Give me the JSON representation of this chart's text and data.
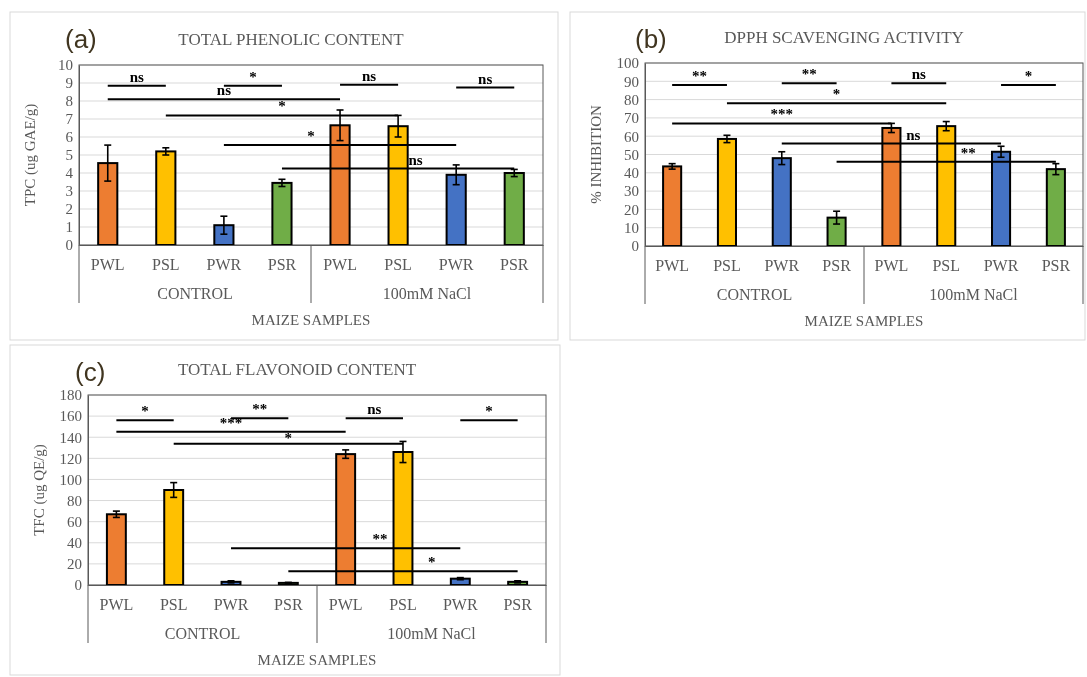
{
  "chart_data": [
    {
      "type": "bar",
      "title": "TOTAL PHENOLIC CONTENT",
      "xlabel": "MAIZE SAMPLES",
      "ylabel": "TPC (ug GAE/g)",
      "categories": [
        "PWL",
        "PSL",
        "PWR",
        "PSR",
        "PWL",
        "PSL",
        "PWR",
        "PSR"
      ],
      "values": [
        4.55,
        5.2,
        1.1,
        3.45,
        6.65,
        6.6,
        3.9,
        4.0
      ],
      "errors": [
        1.0,
        0.2,
        0.5,
        0.2,
        0.85,
        0.6,
        0.55,
        0.2
      ],
      "colors": [
        "#ed7d31",
        "#ffc000",
        "#4472c4",
        "#70ad47",
        "#ed7d31",
        "#ffc000",
        "#4472c4",
        "#70ad47"
      ],
      "ylim": [
        0,
        10
      ],
      "yticks": [
        0,
        1,
        2,
        3,
        4,
        5,
        6,
        7,
        8,
        9,
        10
      ],
      "grid": "y",
      "annotations": [
        "(a)",
        "CONTROL",
        "100mM NaCl",
        "ns",
        "*",
        "ns",
        "ns",
        "ns",
        "*",
        "*",
        "ns"
      ]
    },
    {
      "type": "bar",
      "title": "DPPH SCAVENGING ACTIVITY",
      "xlabel": "MAIZE SAMPLES",
      "ylabel": "% INHIBITION",
      "categories": [
        "PWL",
        "PSL",
        "PWR",
        "PSR",
        "PWL",
        "PSL",
        "PWR",
        "PSR"
      ],
      "values": [
        43.5,
        58.5,
        48,
        15.5,
        64.5,
        65.5,
        51.5,
        42
      ],
      "errors": [
        1.5,
        2,
        3.5,
        3.5,
        2.5,
        2.5,
        3,
        3
      ],
      "colors": [
        "#ed7d31",
        "#ffc000",
        "#4472c4",
        "#70ad47",
        "#ed7d31",
        "#ffc000",
        "#4472c4",
        "#70ad47"
      ],
      "ylim": [
        0,
        100
      ],
      "yticks": [
        0,
        10,
        20,
        30,
        40,
        50,
        60,
        70,
        80,
        90,
        100
      ],
      "grid": "y",
      "annotations": [
        "(b)",
        "CONTROL",
        "100mM NaCl",
        "**",
        "**",
        "ns",
        "*",
        "*",
        "***",
        "ns",
        "**"
      ]
    },
    {
      "type": "bar",
      "title": "TOTAL FLAVONOID CONTENT",
      "xlabel": "MAIZE SAMPLES",
      "ylabel": "TFC (ug QE/g)",
      "categories": [
        "PWL",
        "PSL",
        "PWR",
        "PSR",
        "PWL",
        "PSL",
        "PWR",
        "PSR"
      ],
      "values": [
        67,
        90,
        3,
        2,
        124,
        126,
        6,
        3
      ],
      "errors": [
        3,
        7,
        1,
        0.5,
        4,
        10,
        1,
        1
      ],
      "colors": [
        "#ed7d31",
        "#ffc000",
        "#4472c4",
        "#70ad47",
        "#ed7d31",
        "#ffc000",
        "#4472c4",
        "#70ad47"
      ],
      "ylim": [
        0,
        180
      ],
      "yticks": [
        0,
        20,
        40,
        60,
        80,
        100,
        120,
        140,
        160,
        180
      ],
      "grid": "y",
      "annotations": [
        "(c)",
        "CONTROL",
        "100mM NaCl",
        "*",
        "**",
        "ns",
        "*",
        "***",
        "*",
        "**",
        "*"
      ]
    }
  ]
}
